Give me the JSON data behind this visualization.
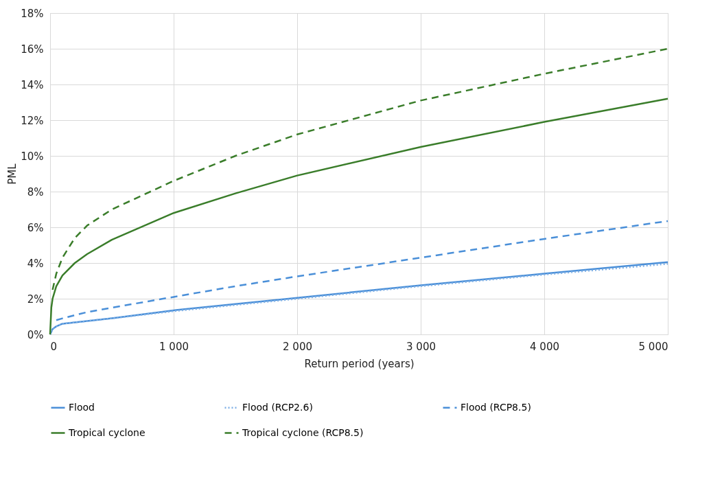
{
  "chart_data": {
    "type": "line",
    "xlabel": "Return period (years)",
    "ylabel": "PML",
    "xlim": [
      0,
      5000
    ],
    "xticks": [
      0,
      {
        "value": 1000,
        "label": "1 000"
      },
      {
        "value": 2000,
        "label": "2 000"
      },
      {
        "value": 3000,
        "label": "3 000"
      },
      {
        "value": 4000,
        "label": "4 000"
      },
      {
        "value": 5000,
        "label": "5 000"
      }
    ],
    "ylim": [
      0,
      18
    ],
    "yticks": [
      {
        "value": 0,
        "label": "0%"
      },
      {
        "value": 2,
        "label": "2%"
      },
      {
        "value": 4,
        "label": "4%"
      },
      {
        "value": 6,
        "label": "6%"
      },
      {
        "value": 8,
        "label": "8%"
      },
      {
        "value": 10,
        "label": "10%"
      },
      {
        "value": 12,
        "label": "12%"
      },
      {
        "value": 14,
        "label": "14%"
      },
      {
        "value": 16,
        "label": "16%"
      },
      {
        "value": 18,
        "label": "18%"
      }
    ],
    "grid": true,
    "legend": "bottom",
    "marker": "none",
    "series": [
      {
        "name": "Flood",
        "color": "#4a8fd8",
        "line_style": "solid",
        "x": [
          0,
          20,
          50,
          100,
          300,
          500,
          1000,
          1500,
          2000,
          3000,
          4000,
          5000
        ],
        "values": [
          0,
          0.3,
          0.45,
          0.6,
          0.75,
          0.9,
          1.35,
          1.7,
          2.05,
          2.75,
          3.4,
          4.05
        ]
      },
      {
        "name": "Flood (RCP2.6)",
        "color": "#7fb0e6",
        "line_style": "dotted",
        "x": [
          0,
          20,
          50,
          100,
          300,
          500,
          1000,
          1500,
          2000,
          3000,
          4000,
          5000
        ],
        "values": [
          0,
          0.3,
          0.45,
          0.6,
          0.75,
          0.9,
          1.3,
          1.65,
          2.0,
          2.7,
          3.35,
          3.95
        ]
      },
      {
        "name": "Flood (RCP8.5)",
        "color": "#4a8fd8",
        "line_style": "dashed",
        "x": [
          50,
          100,
          300,
          500,
          1000,
          1500,
          2000,
          3000,
          4000,
          5000
        ],
        "values": [
          0.8,
          0.9,
          1.25,
          1.5,
          2.1,
          2.7,
          3.25,
          4.3,
          5.35,
          6.35
        ]
      },
      {
        "name": "Tropical cyclone",
        "color": "#3a7d2a",
        "line_style": "solid",
        "x": [
          0,
          10,
          20,
          50,
          100,
          200,
          300,
          500,
          1000,
          1500,
          2000,
          3000,
          4000,
          5000
        ],
        "values": [
          0,
          1.5,
          2.0,
          2.7,
          3.3,
          4.0,
          4.5,
          5.3,
          6.8,
          7.9,
          8.9,
          10.5,
          11.9,
          13.2
        ]
      },
      {
        "name": "Tropical cyclone (RCP8.5)",
        "color": "#3a7d2a",
        "line_style": "dashed",
        "x": [
          20,
          50,
          100,
          200,
          300,
          500,
          1000,
          1500,
          2000,
          3000,
          4000,
          5000
        ],
        "values": [
          2.5,
          3.4,
          4.3,
          5.4,
          6.1,
          7.0,
          8.6,
          10.0,
          11.2,
          13.1,
          14.6,
          16.0
        ]
      }
    ]
  }
}
